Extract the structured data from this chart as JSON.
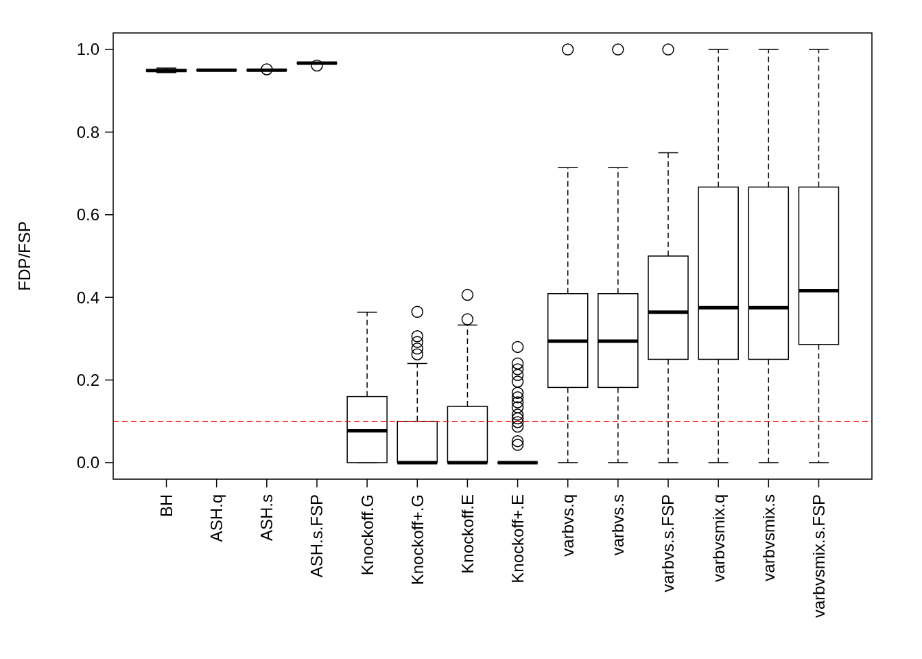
{
  "chart_data": {
    "type": "box",
    "ylabel": "FDP/FSP",
    "categories": [
      "BH",
      "ASH.q",
      "ASH.s",
      "ASH.s.FSP",
      "Knockoff.G",
      "Knockoff+.G",
      "Knockoff.E",
      "Knockoff+.E",
      "varbvs.q",
      "varbvs.s",
      "varbvs.s.FSP",
      "varbvsmix.q",
      "varbvsmix.s",
      "varbvsmix.s.FSP"
    ],
    "boxes": [
      {
        "low": 0.944,
        "q1": 0.947,
        "median": 0.949,
        "q3": 0.951,
        "high": 0.955
      },
      {
        "low": 0.95,
        "q1": 0.95,
        "median": 0.95,
        "q3": 0.95,
        "high": 0.95
      },
      {
        "low": 0.95,
        "q1": 0.95,
        "median": 0.95,
        "q3": 0.95,
        "high": 0.95,
        "outliers": [
          0.952
        ]
      },
      {
        "low": 0.967,
        "q1": 0.967,
        "median": 0.967,
        "q3": 0.967,
        "high": 0.967,
        "outliers": [
          0.961
        ]
      },
      {
        "low": 0,
        "q1": 0,
        "median": 0.077,
        "q3": 0.16,
        "high": 0.364
      },
      {
        "low": 0,
        "q1": 0,
        "median": 0,
        "q3": 0.1,
        "high": 0.24,
        "outliers": [
          0.262,
          0.276,
          0.292,
          0.306,
          0.365
        ]
      },
      {
        "low": 0,
        "q1": 0,
        "median": 0,
        "q3": 0.136,
        "high": 0.333,
        "outliers": [
          0.347,
          0.406
        ]
      },
      {
        "low": 0,
        "q1": 0,
        "median": 0,
        "q3": 0,
        "high": 0,
        "outliers": [
          0.043,
          0.052,
          0.087,
          0.098,
          0.107,
          0.116,
          0.134,
          0.146,
          0.158,
          0.169,
          0.196,
          0.212,
          0.226,
          0.24,
          0.28
        ]
      },
      {
        "low": 0,
        "q1": 0.182,
        "median": 0.294,
        "q3": 0.409,
        "high": 0.714,
        "outliers": [
          1
        ]
      },
      {
        "low": 0,
        "q1": 0.182,
        "median": 0.294,
        "q3": 0.409,
        "high": 0.714,
        "outliers": [
          1
        ]
      },
      {
        "low": 0,
        "q1": 0.25,
        "median": 0.364,
        "q3": 0.5,
        "high": 0.75,
        "outliers": [
          1
        ]
      },
      {
        "low": 0,
        "q1": 0.25,
        "median": 0.375,
        "q3": 0.667,
        "high": 1
      },
      {
        "low": 0,
        "q1": 0.25,
        "median": 0.375,
        "q3": 0.667,
        "high": 1
      },
      {
        "low": 0,
        "q1": 0.286,
        "median": 0.416,
        "q3": 0.667,
        "high": 1
      }
    ],
    "ylim": [
      -0.04,
      1.04
    ],
    "yticks": [
      {
        "value": 0,
        "label": "0.0"
      },
      {
        "value": 0.2,
        "label": "0.2"
      },
      {
        "value": 0.4,
        "label": "0.4"
      },
      {
        "value": 0.6,
        "label": "0.6"
      },
      {
        "value": 0.8,
        "label": "0.8"
      },
      {
        "value": 1,
        "label": "1.0"
      }
    ],
    "ref_lines": [
      {
        "axis": "y",
        "value": 0.1,
        "color": "#ff0000",
        "line_style": "dashed"
      }
    ],
    "grid": false
  }
}
